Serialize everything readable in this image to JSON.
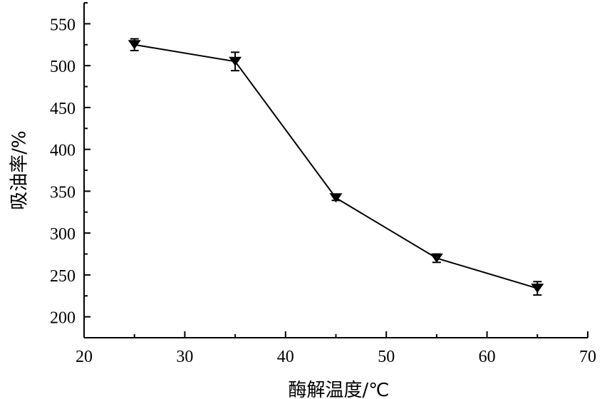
{
  "chart_data": {
    "type": "line",
    "xlabel": "酶解温度/℃",
    "ylabel": "吸油率/%",
    "xlim": [
      20,
      70
    ],
    "ylim": [
      175,
      575
    ],
    "xticks": [
      20,
      30,
      40,
      50,
      60,
      70
    ],
    "yticks": [
      200,
      250,
      300,
      350,
      400,
      450,
      500,
      550
    ],
    "grid": false,
    "series": [
      {
        "marker": "triangle-down",
        "color": "#000000",
        "points": [
          {
            "x": 25,
            "y": 525,
            "err": 7
          },
          {
            "x": 35,
            "y": 505,
            "err": 11
          },
          {
            "x": 45,
            "y": 342,
            "err": 3
          },
          {
            "x": 55,
            "y": 270,
            "err": 5
          },
          {
            "x": 65,
            "y": 234,
            "err": 8
          }
        ]
      }
    ]
  }
}
